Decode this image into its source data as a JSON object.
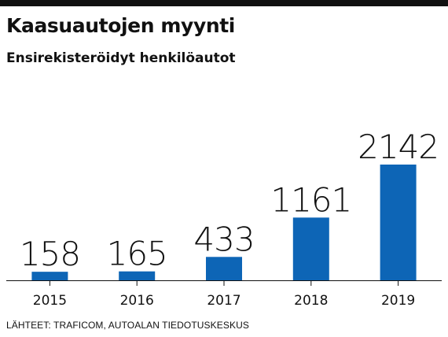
{
  "title": "Kaasuautojen myynti",
  "subtitle": "Ensirekisteröidyt henkilöautot",
  "source": "LÄHTEET: TRAFICOM, AUTOALAN TIEDOTUSKESKUS",
  "colors": {
    "bar": "#0d65b6",
    "text": "#111111",
    "axis": "#111111"
  },
  "chart_data": {
    "type": "bar",
    "title": "Kaasuautojen myynti",
    "subtitle": "Ensirekisteröidyt henkilöautot",
    "categories": [
      "2015",
      "2016",
      "2017",
      "2018",
      "2019"
    ],
    "values": [
      158,
      165,
      433,
      1161,
      2142
    ],
    "data_labels": [
      "158",
      "165",
      "433",
      "1161",
      "2142"
    ],
    "xlabel": "",
    "ylabel": "",
    "ylim": [
      0,
      2142
    ],
    "grid": false,
    "legend": "none"
  }
}
